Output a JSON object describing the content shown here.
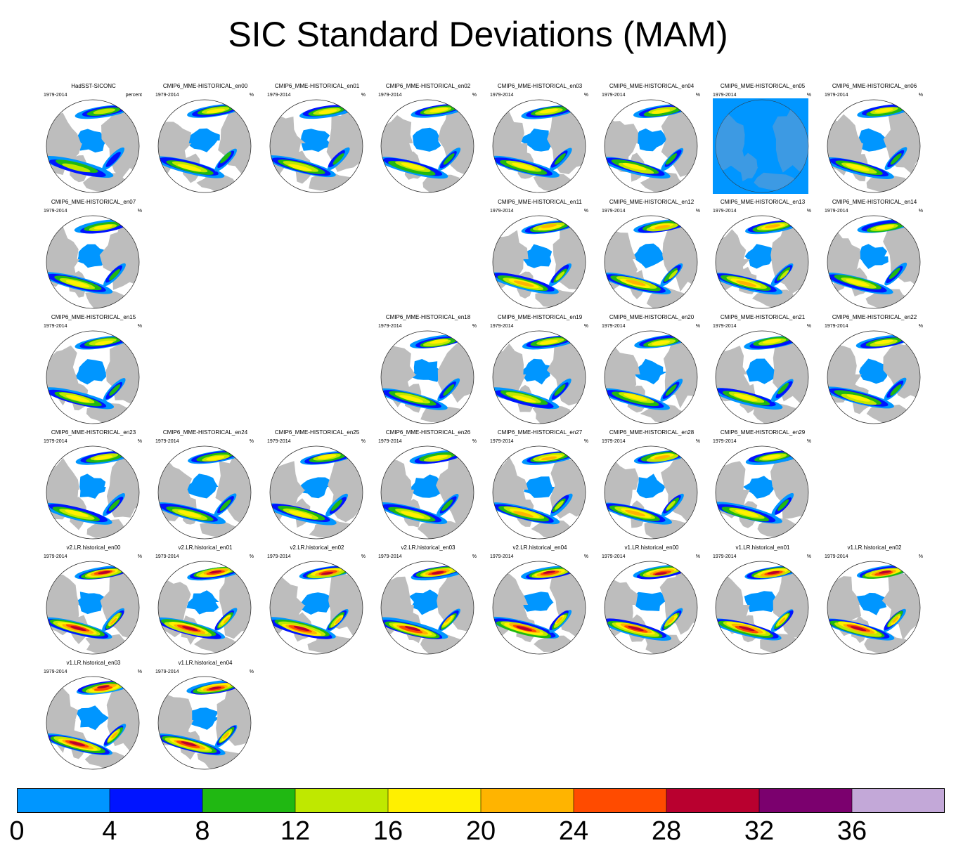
{
  "title": "SIC Standard Deviations (MAM)",
  "colors": {
    "land": "#bdbdbd",
    "ocean": "#ffffff",
    "low_ice": "#0096ff",
    "flat_panel": "#0096ff"
  },
  "panels": [
    {
      "name": "HadSST-SICONC",
      "period": "1979-2014",
      "unit": "percent",
      "row": 0,
      "col": 0,
      "intensity": 0.45,
      "seed": 1
    },
    {
      "name": "CMIP6_MME-HISTORICAL_en00",
      "period": "1979-2014",
      "unit": "%",
      "row": 0,
      "col": 1,
      "intensity": 0.55,
      "seed": 2
    },
    {
      "name": "CMIP6_MME-HISTORICAL_en01",
      "period": "1979-2014",
      "unit": "%",
      "row": 0,
      "col": 2,
      "intensity": 0.55,
      "seed": 3
    },
    {
      "name": "CMIP6_MME-HISTORICAL_en02",
      "period": "1979-2014",
      "unit": "%",
      "row": 0,
      "col": 3,
      "intensity": 0.6,
      "seed": 4
    },
    {
      "name": "CMIP6_MME-HISTORICAL_en03",
      "period": "1979-2014",
      "unit": "%",
      "row": 0,
      "col": 4,
      "intensity": 0.6,
      "seed": 5
    },
    {
      "name": "CMIP6_MME-HISTORICAL_en04",
      "period": "1979-2014",
      "unit": "%",
      "row": 0,
      "col": 5,
      "intensity": 0.5,
      "seed": 6
    },
    {
      "name": "CMIP6_MME-HISTORICAL_en05",
      "period": "1979-2014",
      "unit": "%",
      "row": 0,
      "col": 6,
      "intensity": 0,
      "seed": 7,
      "flat": true
    },
    {
      "name": "CMIP6_MME-HISTORICAL_en06",
      "period": "1979-2014",
      "unit": "%",
      "row": 0,
      "col": 7,
      "intensity": 0.6,
      "seed": 8
    },
    {
      "name": "CMIP6_MME-HISTORICAL_en07",
      "period": "1979-2014",
      "unit": "%",
      "row": 1,
      "col": 0,
      "intensity": 0.5,
      "seed": 9
    },
    {
      "name": "CMIP6_MME-HISTORICAL_en11",
      "period": "1979-2014",
      "unit": "%",
      "row": 1,
      "col": 4,
      "intensity": 0.65,
      "seed": 10
    },
    {
      "name": "CMIP6_MME-HISTORICAL_en12",
      "period": "1979-2014",
      "unit": "%",
      "row": 1,
      "col": 5,
      "intensity": 0.65,
      "seed": 11
    },
    {
      "name": "CMIP6_MME-HISTORICAL_en13",
      "period": "1979-2014",
      "unit": "%",
      "row": 1,
      "col": 6,
      "intensity": 0.65,
      "seed": 12
    },
    {
      "name": "CMIP6_MME-HISTORICAL_en14",
      "period": "1979-2014",
      "unit": "%",
      "row": 1,
      "col": 7,
      "intensity": 0.6,
      "seed": 13
    },
    {
      "name": "CMIP6_MME-HISTORICAL_en15",
      "period": "1979-2014",
      "unit": "%",
      "row": 2,
      "col": 0,
      "intensity": 0.55,
      "seed": 14
    },
    {
      "name": "CMIP6_MME-HISTORICAL_en18",
      "period": "1979-2014",
      "unit": "%",
      "row": 2,
      "col": 3,
      "intensity": 0.55,
      "seed": 15
    },
    {
      "name": "CMIP6_MME-HISTORICAL_en19",
      "period": "1979-2014",
      "unit": "%",
      "row": 2,
      "col": 4,
      "intensity": 0.6,
      "seed": 16
    },
    {
      "name": "CMIP6_MME-HISTORICAL_en20",
      "period": "1979-2014",
      "unit": "%",
      "row": 2,
      "col": 5,
      "intensity": 0.6,
      "seed": 17
    },
    {
      "name": "CMIP6_MME-HISTORICAL_en21",
      "period": "1979-2014",
      "unit": "%",
      "row": 2,
      "col": 6,
      "intensity": 0.6,
      "seed": 18
    },
    {
      "name": "CMIP6_MME-HISTORICAL_en22",
      "period": "1979-2014",
      "unit": "%",
      "row": 2,
      "col": 7,
      "intensity": 0.6,
      "seed": 19
    },
    {
      "name": "CMIP6_MME-HISTORICAL_en23",
      "period": "1979-2014",
      "unit": "%",
      "row": 3,
      "col": 0,
      "intensity": 0.55,
      "seed": 20
    },
    {
      "name": "CMIP6_MME-HISTORICAL_en24",
      "period": "1979-2014",
      "unit": "%",
      "row": 3,
      "col": 1,
      "intensity": 0.55,
      "seed": 21
    },
    {
      "name": "CMIP6_MME-HISTORICAL_en25",
      "period": "1979-2014",
      "unit": "%",
      "row": 3,
      "col": 2,
      "intensity": 0.6,
      "seed": 22
    },
    {
      "name": "CMIP6_MME-HISTORICAL_en26",
      "period": "1979-2014",
      "unit": "%",
      "row": 3,
      "col": 3,
      "intensity": 0.55,
      "seed": 23
    },
    {
      "name": "CMIP6_MME-HISTORICAL_en27",
      "period": "1979-2014",
      "unit": "%",
      "row": 3,
      "col": 4,
      "intensity": 0.7,
      "seed": 24
    },
    {
      "name": "CMIP6_MME-HISTORICAL_en28",
      "period": "1979-2014",
      "unit": "%",
      "row": 3,
      "col": 5,
      "intensity": 0.65,
      "seed": 25
    },
    {
      "name": "CMIP6_MME-HISTORICAL_en29",
      "period": "1979-2014",
      "unit": "%",
      "row": 3,
      "col": 6,
      "intensity": 0.55,
      "seed": 26
    },
    {
      "name": "v2.LR.historical_en00",
      "period": "1979-2014",
      "unit": "%",
      "row": 4,
      "col": 0,
      "intensity": 0.9,
      "seed": 27
    },
    {
      "name": "v2.LR.historical_en01",
      "period": "1979-2014",
      "unit": "%",
      "row": 4,
      "col": 1,
      "intensity": 0.9,
      "seed": 28
    },
    {
      "name": "v2.LR.historical_en02",
      "period": "1979-2014",
      "unit": "%",
      "row": 4,
      "col": 2,
      "intensity": 0.9,
      "seed": 29
    },
    {
      "name": "v2.LR.historical_en03",
      "period": "1979-2014",
      "unit": "%",
      "row": 4,
      "col": 3,
      "intensity": 0.9,
      "seed": 30
    },
    {
      "name": "v2.LR.historical_en04",
      "period": "1979-2014",
      "unit": "%",
      "row": 4,
      "col": 4,
      "intensity": 0.9,
      "seed": 31
    },
    {
      "name": "v1.LR.historical_en00",
      "period": "1979-2014",
      "unit": "%",
      "row": 4,
      "col": 5,
      "intensity": 0.85,
      "seed": 32
    },
    {
      "name": "v1.LR.historical_en01",
      "period": "1979-2014",
      "unit": "%",
      "row": 4,
      "col": 6,
      "intensity": 0.85,
      "seed": 33
    },
    {
      "name": "v1.LR.historical_en02",
      "period": "1979-2014",
      "unit": "%",
      "row": 4,
      "col": 7,
      "intensity": 0.85,
      "seed": 34
    },
    {
      "name": "v1.LR.historical_en03",
      "period": "1979-2014",
      "unit": "%",
      "row": 5,
      "col": 0,
      "intensity": 0.85,
      "seed": 35
    },
    {
      "name": "v1.LR.historical_en04",
      "period": "1979-2014",
      "unit": "%",
      "row": 5,
      "col": 1,
      "intensity": 0.85,
      "seed": 36
    }
  ],
  "chart_data": {
    "type": "heatmap",
    "title": "SIC Standard Deviations (MAM)",
    "colorbar": {
      "levels": [
        0,
        4,
        8,
        12,
        16,
        20,
        24,
        28,
        32,
        36
      ],
      "tick_labels": [
        "0",
        "4",
        "8",
        "12",
        "16",
        "20",
        "24",
        "28",
        "32",
        "36"
      ],
      "colors": [
        "#0096ff",
        "#0014ff",
        "#20b812",
        "#bfe800",
        "#fff000",
        "#ffb400",
        "#ff4b00",
        "#b9002f",
        "#7b006e",
        "#c3a8d8"
      ],
      "placement": "bottom"
    }
  }
}
